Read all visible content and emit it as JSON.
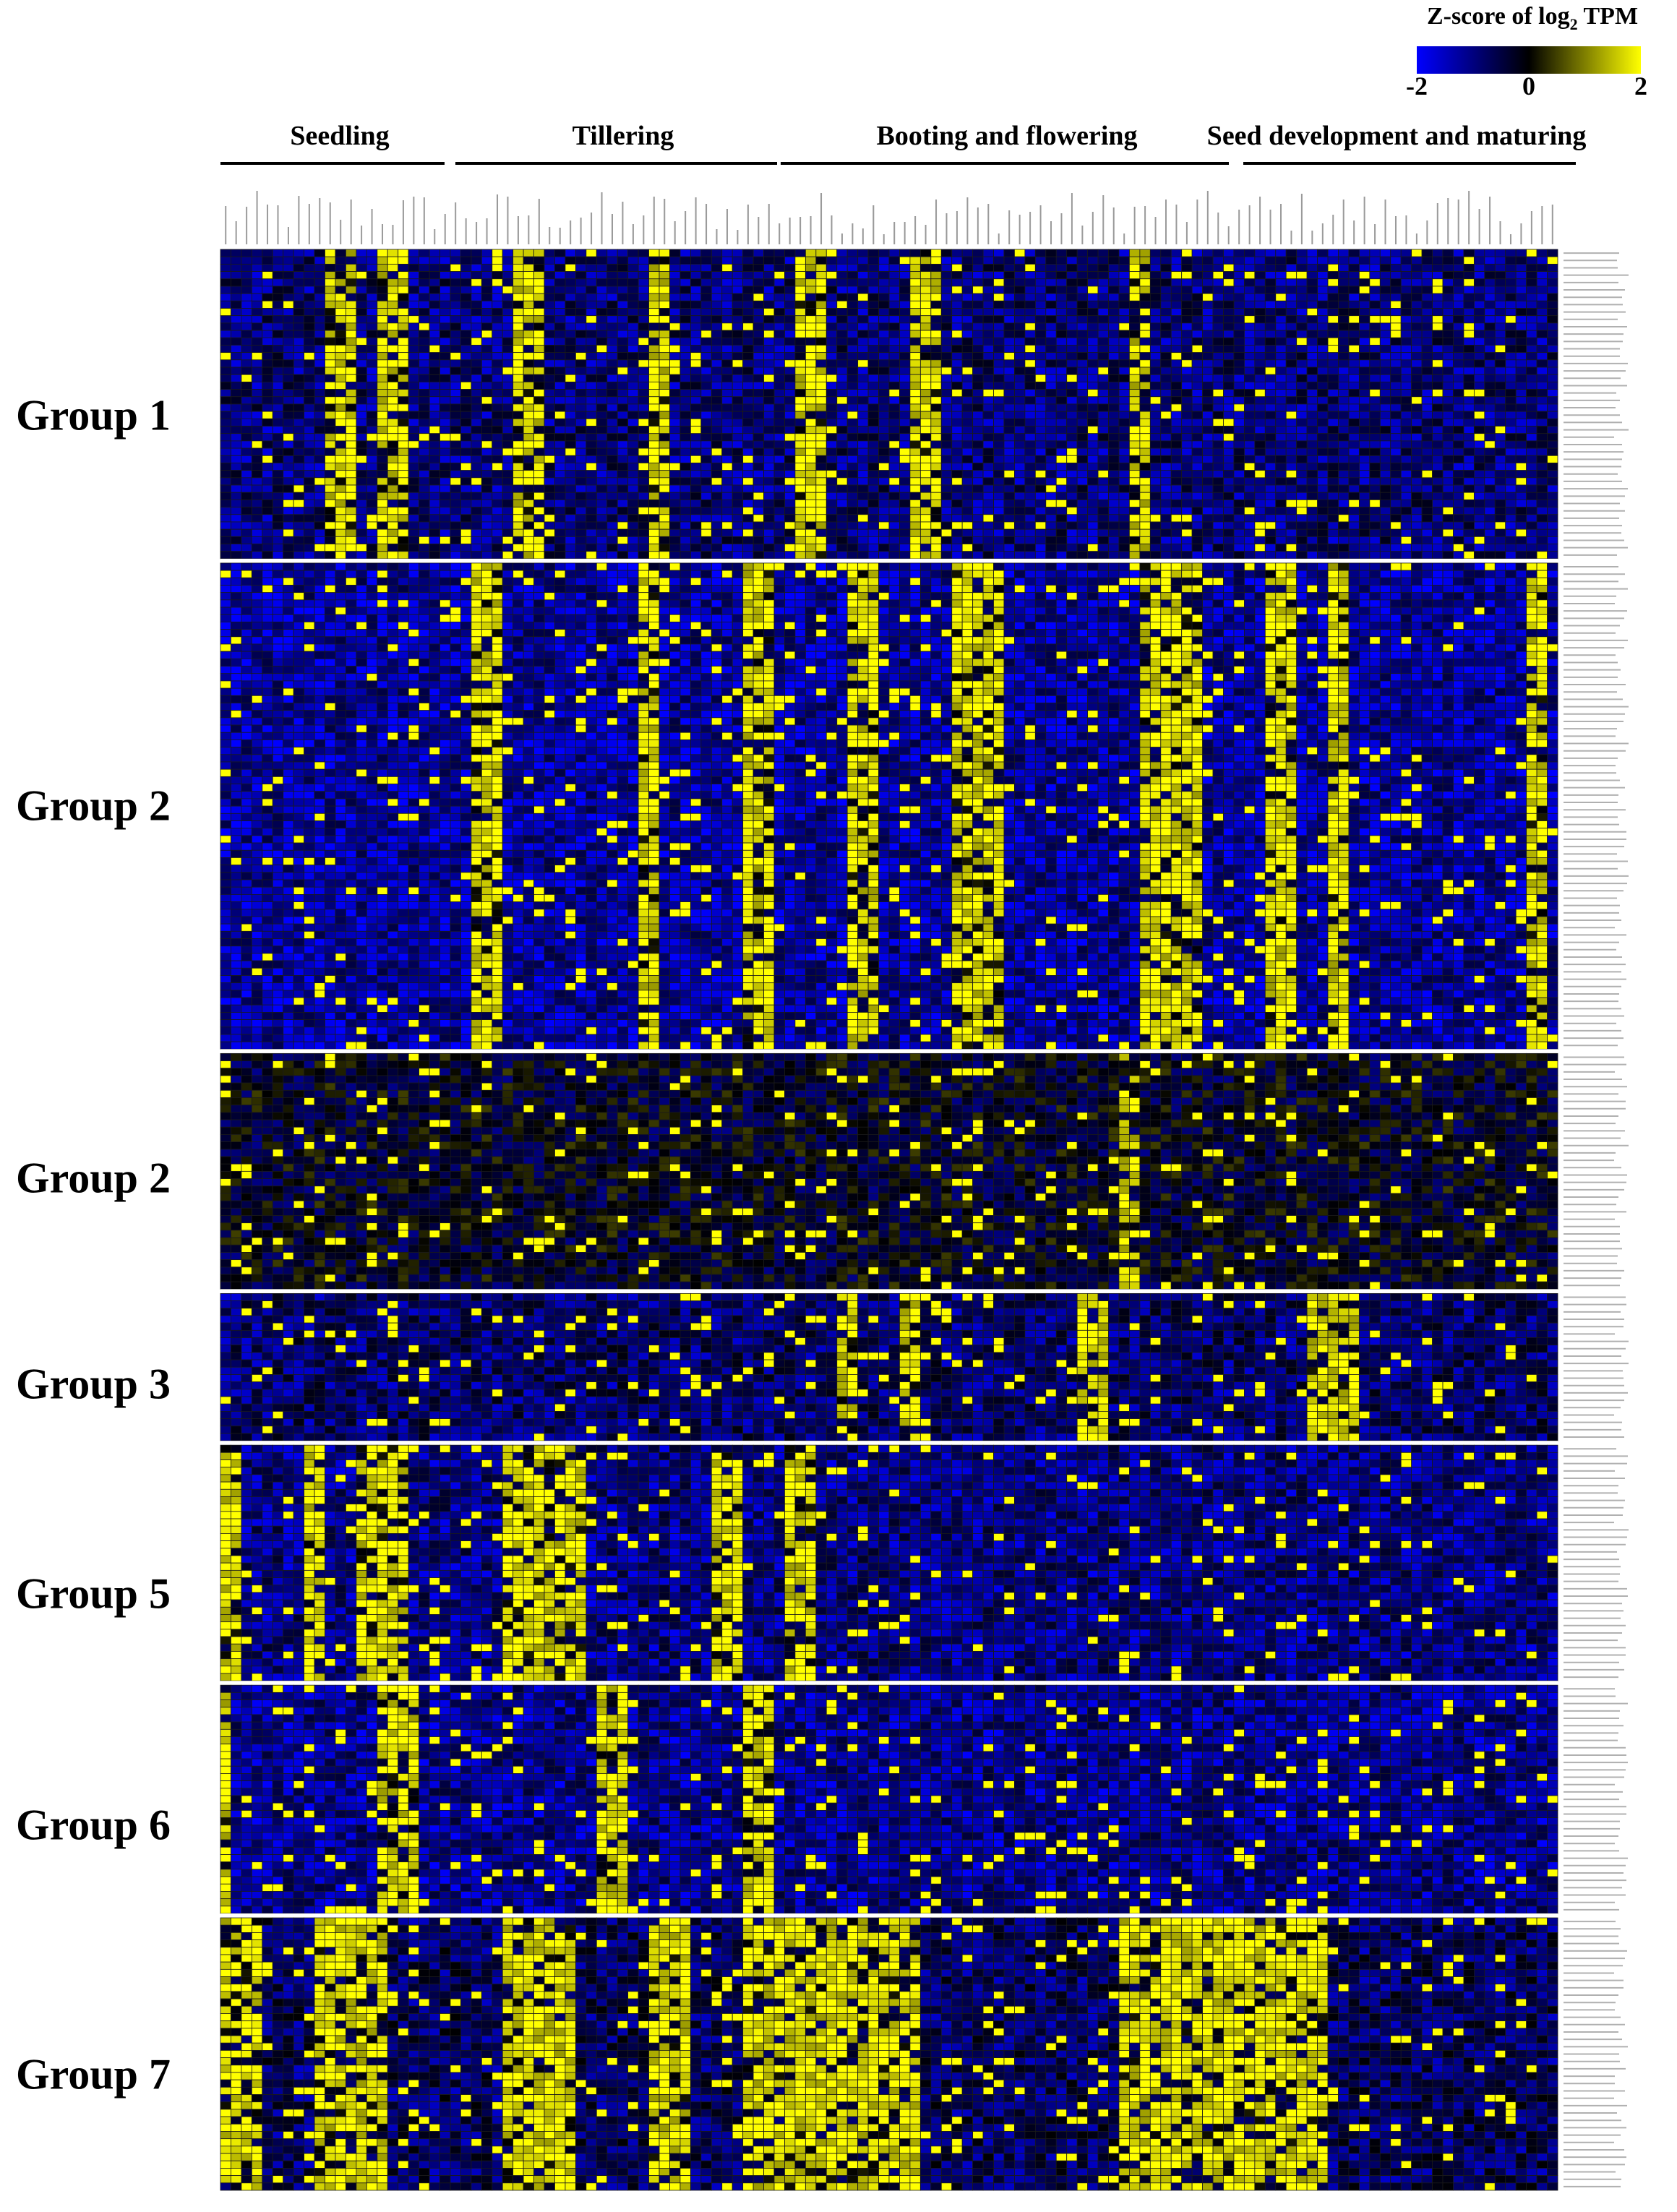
{
  "legend": {
    "title_text": "Z-score of  log",
    "title_sub": "2",
    "title_suffix": " TPM",
    "min_label": "-2",
    "mid_label": "0",
    "max_label": "2",
    "colors": {
      "low": "#0000ff",
      "mid": "#000000",
      "high": "#ffff00"
    }
  },
  "stages": [
    {
      "label": "Seedling"
    },
    {
      "label": "Tillering"
    },
    {
      "label": "Booting and flowering"
    },
    {
      "label": "Seed development and maturing"
    }
  ],
  "groups": [
    {
      "label": "Group 1",
      "rows": 42
    },
    {
      "label": "Group 2",
      "rows": 66
    },
    {
      "label": "Group 2",
      "rows": 32
    },
    {
      "label": "Group 3",
      "rows": 20
    },
    {
      "label": "Group 5",
      "rows": 32
    },
    {
      "label": "Group 6",
      "rows": 31
    },
    {
      "label": "Group 7",
      "rows": 37
    }
  ],
  "chart_data": {
    "type": "heatmap",
    "value_label": "Z-score of log2 TPM",
    "color_range": [
      -2,
      2
    ],
    "n_columns": 128,
    "stage_column_spans": [
      {
        "stage": "Seedling",
        "columns": [
          0,
          22
        ]
      },
      {
        "stage": "Tillering",
        "columns": [
          23,
          48
        ]
      },
      {
        "stage": "Booting and flowering",
        "columns": [
          49,
          89
        ]
      },
      {
        "stage": "Seed development and maturing",
        "columns": [
          90,
          127
        ]
      }
    ],
    "group_column_profiles": [
      {
        "group": "Group 1",
        "high_columns": [
          10,
          11,
          12,
          15,
          16,
          17,
          28,
          29,
          30,
          41,
          42,
          55,
          56,
          57,
          66,
          67,
          68,
          87,
          88
        ],
        "base": -1.0
      },
      {
        "group": "Group 2",
        "high_columns": [
          24,
          25,
          26,
          40,
          41,
          50,
          51,
          52,
          60,
          61,
          62,
          70,
          71,
          72,
          73,
          74,
          88,
          89,
          90,
          91,
          92,
          93,
          100,
          101,
          102,
          106,
          107,
          125,
          126
        ],
        "base": -1.3
      },
      {
        "group": "Group 2",
        "high_columns": [
          86,
          87
        ],
        "base": -0.3
      },
      {
        "group": "Group 3",
        "high_columns": [
          59,
          60,
          65,
          66,
          82,
          83,
          84,
          104,
          105,
          106,
          107,
          108
        ],
        "base": -0.9
      },
      {
        "group": "Group 5",
        "high_columns": [
          0,
          1,
          8,
          9,
          13,
          14,
          15,
          16,
          17,
          27,
          28,
          29,
          30,
          31,
          32,
          33,
          34,
          47,
          48,
          49,
          54,
          55,
          56
        ],
        "base": -1.1
      },
      {
        "group": "Group 6",
        "high_columns": [
          0,
          15,
          16,
          17,
          18,
          36,
          37,
          38,
          50,
          51,
          52
        ],
        "base": -1.2
      },
      {
        "group": "Group 7",
        "high_columns": [
          0,
          1,
          2,
          3,
          9,
          10,
          11,
          12,
          13,
          14,
          15,
          27,
          28,
          29,
          30,
          31,
          32,
          33,
          41,
          42,
          43,
          44,
          50,
          51,
          52,
          53,
          54,
          55,
          56,
          57,
          58,
          59,
          60,
          61,
          62,
          63,
          64,
          65,
          66,
          86,
          87,
          88,
          89,
          90,
          91,
          92,
          93,
          94,
          95,
          96,
          97,
          98,
          99,
          100,
          101,
          102,
          103,
          104,
          105
        ],
        "base": -0.8
      }
    ]
  }
}
